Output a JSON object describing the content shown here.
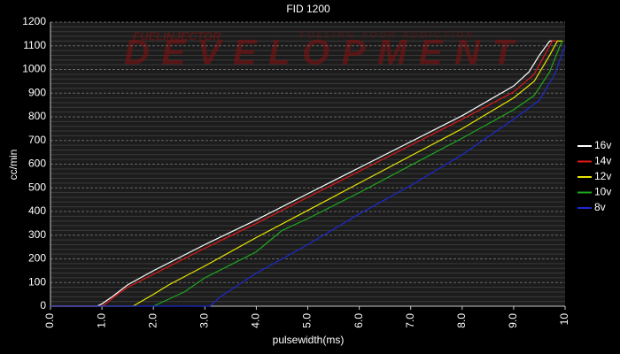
{
  "chart_data": {
    "type": "line",
    "title": "FID 1200",
    "watermark": [
      "FUELINJECTOR",
      "DEVELOPMENT",
      "FUELING YOUR ADDICTION"
    ],
    "xlabel": "pulsewidth(ms)",
    "ylabel": "cc/min",
    "xlim": [
      0,
      10
    ],
    "ylim": [
      0,
      1200
    ],
    "xticks": [
      {
        "value": 0,
        "label": "0.0"
      },
      {
        "value": 1,
        "label": "1.0"
      },
      {
        "value": 2,
        "label": "2.0"
      },
      {
        "value": 3,
        "label": "3.0"
      },
      {
        "value": 4,
        "label": "4.0"
      },
      {
        "value": 5,
        "label": "5.0"
      },
      {
        "value": 6,
        "label": "6.0"
      },
      {
        "value": 7,
        "label": "7.0"
      },
      {
        "value": 8,
        "label": "8.0"
      },
      {
        "value": 9,
        "label": "9.0"
      },
      {
        "value": 10,
        "label": "10"
      }
    ],
    "yticks": [
      0,
      100,
      200,
      300,
      400,
      500,
      600,
      700,
      800,
      900,
      1000,
      1100,
      1200
    ],
    "grid": true,
    "legend": "right",
    "series": [
      {
        "name": "16v",
        "color": "#ffffff",
        "x": [
          0,
          0.9,
          1.0,
          1.2,
          1.5,
          2,
          3,
          4,
          5,
          6,
          7,
          8,
          9,
          9.3,
          9.5,
          9.7,
          9.8
        ],
        "values": [
          0,
          0,
          10,
          40,
          90,
          150,
          260,
          365,
          475,
          585,
          695,
          805,
          930,
          990,
          1060,
          1120,
          1120
        ]
      },
      {
        "name": "14v",
        "color": "#e01818",
        "x": [
          0,
          1.0,
          1.1,
          1.3,
          1.5,
          2,
          3,
          4,
          5,
          6,
          7,
          8,
          9,
          9.4,
          9.6,
          9.75,
          9.85
        ],
        "values": [
          0,
          0,
          15,
          50,
          80,
          135,
          245,
          350,
          460,
          570,
          680,
          790,
          905,
          980,
          1060,
          1120,
          1120
        ]
      },
      {
        "name": "12v",
        "color": "#e8e800",
        "x": [
          0,
          1.6,
          2,
          2.3,
          3,
          4,
          5,
          6,
          7,
          8,
          9,
          9.4,
          9.7,
          9.85,
          9.95
        ],
        "values": [
          0,
          0,
          50,
          90,
          170,
          290,
          405,
          520,
          635,
          750,
          880,
          950,
          1060,
          1120,
          1120
        ]
      },
      {
        "name": "10v",
        "color": "#1ea81e",
        "x": [
          2,
          2.6,
          3,
          4,
          4.5,
          5,
          6,
          7,
          8,
          9,
          9.4,
          9.7,
          9.9,
          9.95
        ],
        "values": [
          0,
          60,
          120,
          230,
          320,
          370,
          480,
          595,
          710,
          830,
          890,
          990,
          1100,
          1120
        ]
      },
      {
        "name": "8v",
        "color": "#1a2ad0",
        "x": [
          0,
          3.1,
          3.3,
          4,
          5,
          6,
          7,
          8,
          9,
          9.5,
          9.8,
          10
        ],
        "values": [
          0,
          0,
          40,
          140,
          260,
          390,
          510,
          640,
          790,
          870,
          980,
          1100
        ]
      }
    ]
  }
}
